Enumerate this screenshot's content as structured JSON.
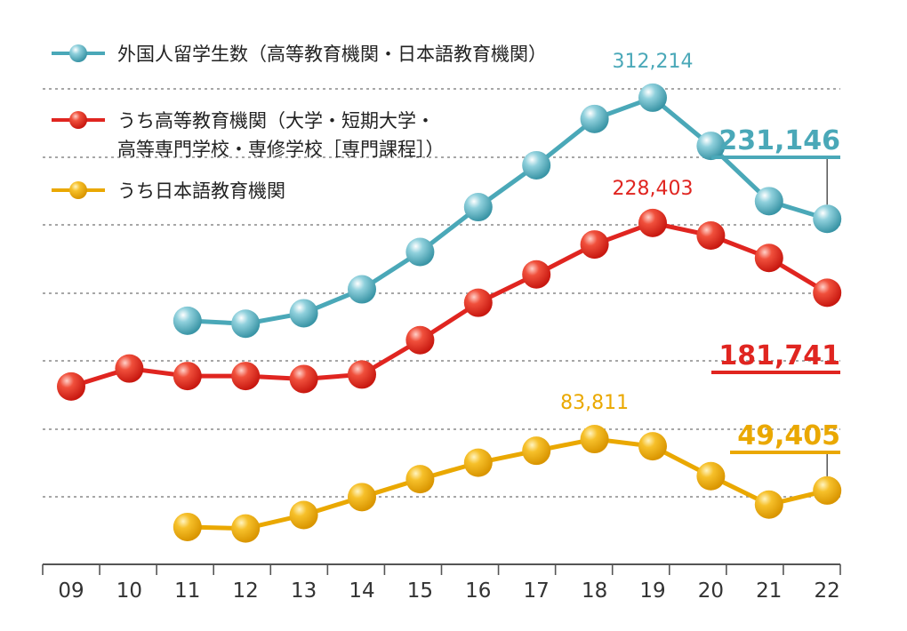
{
  "chart_data": {
    "type": "line",
    "x": [
      "09",
      "10",
      "11",
      "12",
      "13",
      "14",
      "15",
      "16",
      "17",
      "18",
      "19",
      "20",
      "21",
      "22"
    ],
    "ylim": [
      0,
      330000
    ],
    "grid": true,
    "legend_placement": "top-left",
    "series": [
      {
        "name": "外国人留学生数（高等教育機関・日本語教育機関）",
        "color": "#4aa8b8",
        "values": [
          null,
          null,
          163000,
          161000,
          168000,
          184000,
          209000,
          239000,
          267000,
          298000,
          312214,
          280000,
          243000,
          231146
        ],
        "peak_label": "312,214",
        "final_label": "231,146"
      },
      {
        "name": "うち高等教育機関（大学・短期大学・高等専門学校・専修学校［専門課程］）",
        "name_lines": [
          "うち高等教育機関（大学・短期大学・",
          "高等専門学校・専修学校［専門課程］）"
        ],
        "color": "#e02520",
        "values": [
          119000,
          131000,
          126000,
          126000,
          124000,
          127000,
          150000,
          175000,
          194000,
          214000,
          228403,
          220000,
          205000,
          181741
        ],
        "peak_label": "228,403",
        "final_label": "181,741"
      },
      {
        "name": "うち日本語教育機関",
        "color": "#eaa800",
        "values": [
          null,
          null,
          25000,
          24000,
          33000,
          45000,
          57000,
          68000,
          76000,
          83811,
          79000,
          59000,
          40000,
          49405
        ],
        "peak_label": "83,811",
        "final_label": "49,405"
      }
    ]
  }
}
